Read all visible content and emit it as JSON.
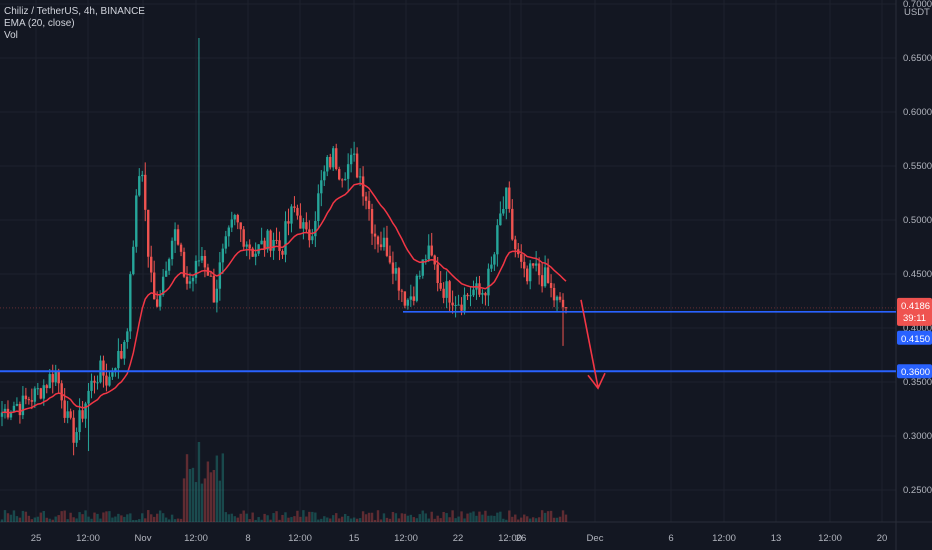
{
  "legend": {
    "title": "Chiliz / TetherUS, 4h, BINANCE",
    "indicator": "EMA (20, close)",
    "volume": "Vol"
  },
  "chart_data": {
    "type": "candlestick",
    "y_unit": "USDT",
    "ylim": [
      0.2,
      0.7
    ],
    "y_ticks": [
      "0.7000",
      "0.6500",
      "0.6000",
      "0.5500",
      "0.5000",
      "0.4500",
      "0.4000",
      "0.3500",
      "0.3000",
      "0.2500"
    ],
    "x_ticks": [
      "25",
      "12:00",
      "Nov",
      "12:00",
      "8",
      "12:00",
      "15",
      "12:00",
      "22",
      "12:00",
      "26",
      "Dec",
      "6",
      "12:00",
      "13",
      "12:00",
      "20"
    ],
    "close_path": [
      0.322,
      0.326,
      0.33,
      0.328,
      0.335,
      0.338,
      0.345,
      0.352,
      0.36,
      0.34,
      0.31,
      0.3,
      0.32,
      0.34,
      0.355,
      0.36,
      0.35,
      0.37,
      0.375,
      0.41,
      0.5,
      0.56,
      0.47,
      0.42,
      0.44,
      0.47,
      0.49,
      0.46,
      0.44,
      0.45,
      0.47,
      0.455,
      0.43,
      0.46,
      0.48,
      0.5,
      0.49,
      0.48,
      0.47,
      0.475,
      0.48,
      0.485,
      0.47,
      0.495,
      0.51,
      0.5,
      0.48,
      0.5,
      0.53,
      0.55,
      0.56,
      0.545,
      0.55,
      0.555,
      0.54,
      0.52,
      0.49,
      0.48,
      0.475,
      0.46,
      0.44,
      0.425,
      0.435,
      0.45,
      0.47,
      0.46,
      0.44,
      0.435,
      0.43,
      0.425,
      0.43,
      0.435,
      0.43,
      0.44,
      0.46,
      0.5,
      0.52,
      0.48,
      0.46,
      0.44,
      0.455,
      0.45,
      0.445,
      0.43,
      0.42,
      0.4186
    ],
    "ema": {
      "name": "EMA (20, close)",
      "color": "#f23645"
    },
    "support_levels": [
      0.415,
      0.36
    ],
    "current_price": "0.4186",
    "countdown": "39:11",
    "level_labels": [
      "0.4150",
      "0.3600"
    ],
    "annotation": "arrow pointing down from 0.4150 toward 0.3600"
  },
  "colors": {
    "background": "#131722",
    "up": "#26a69a",
    "down": "#ef5350",
    "level_line": "#2962ff",
    "arrow": "#f23645",
    "grid": "#1e222d",
    "axis_text": "#b2b5be"
  }
}
